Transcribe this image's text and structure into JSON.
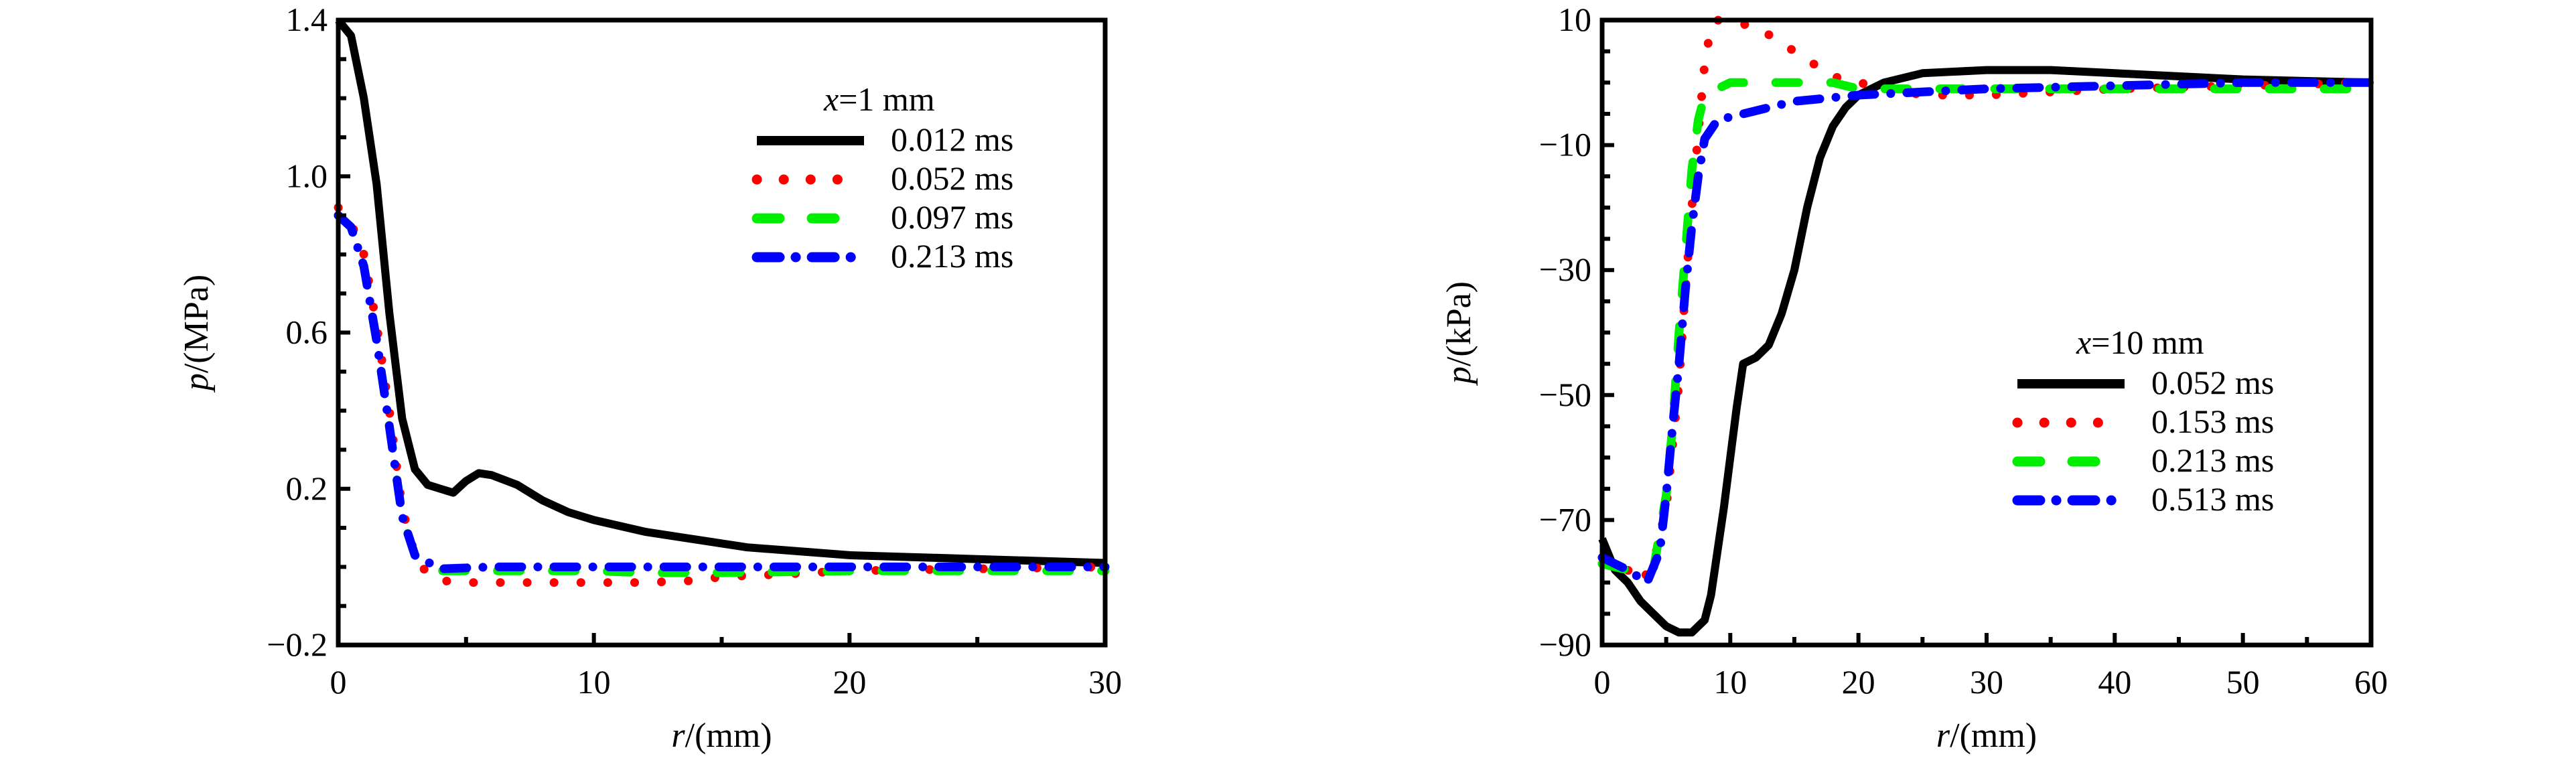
{
  "chart_data": [
    {
      "type": "line",
      "title": "",
      "xlabel_var": "r",
      "xlabel_unit": "/(mm)",
      "ylabel_var": "p",
      "ylabel_unit": "/(MPa)",
      "xlim": [
        0,
        30
      ],
      "ylim": [
        -0.2,
        1.4
      ],
      "xticks": [
        0,
        10,
        20,
        30
      ],
      "xtick_labels": [
        "0",
        "10",
        "20",
        "30"
      ],
      "yticks": [
        -0.2,
        0.2,
        0.6,
        1.0,
        1.4
      ],
      "ytick_labels": [
        "−0.2",
        "0.2",
        "0.6",
        "1.0",
        "1.4"
      ],
      "xminor": 5,
      "yminor": 0.1,
      "grid": false,
      "legend_position": "top-right",
      "legend_title_var": "x",
      "legend_title_rest": "=1 mm",
      "series": [
        {
          "name": "0.012 ms",
          "color": "#000000",
          "style": "solid",
          "x": [
            0,
            0.5,
            1,
            1.5,
            2,
            2.5,
            3,
            3.5,
            4,
            4.5,
            5,
            5.5,
            6,
            7,
            8,
            9,
            10,
            12,
            14,
            16,
            18,
            20,
            25,
            30
          ],
          "y": [
            1.4,
            1.36,
            1.2,
            0.98,
            0.65,
            0.38,
            0.25,
            0.21,
            0.2,
            0.19,
            0.22,
            0.24,
            0.235,
            0.21,
            0.17,
            0.14,
            0.12,
            0.09,
            0.07,
            0.05,
            0.04,
            0.03,
            0.02,
            0.01
          ]
        },
        {
          "name": "0.052 ms",
          "color": "#ff0000",
          "style": "dotted",
          "x": [
            0,
            0.5,
            1,
            1.5,
            2,
            2.5,
            3,
            3.5,
            4,
            5,
            8,
            10,
            12,
            14,
            15,
            17,
            20,
            25,
            30
          ],
          "y": [
            0.92,
            0.88,
            0.8,
            0.62,
            0.4,
            0.15,
            0.03,
            -0.02,
            -0.035,
            -0.04,
            -0.04,
            -0.04,
            -0.04,
            -0.035,
            -0.025,
            -0.02,
            -0.01,
            -0.005,
            0
          ]
        },
        {
          "name": "0.097 ms",
          "color": "#00ee00",
          "style": "dashed",
          "x": [
            0,
            0.5,
            1,
            1.5,
            2,
            2.5,
            3,
            4,
            6,
            10,
            12,
            15,
            20,
            25,
            30
          ],
          "y": [
            0.9,
            0.87,
            0.77,
            0.58,
            0.36,
            0.13,
            0.03,
            -0.01,
            -0.01,
            -0.01,
            -0.015,
            -0.015,
            -0.01,
            -0.01,
            -0.01
          ]
        },
        {
          "name": "0.213 ms",
          "color": "#0000ff",
          "style": "dashdot",
          "x": [
            0,
            0.5,
            1,
            1.5,
            2,
            2.5,
            3,
            4,
            6,
            10,
            15,
            20,
            25,
            30
          ],
          "y": [
            0.9,
            0.87,
            0.77,
            0.58,
            0.36,
            0.13,
            0.03,
            -0.005,
            0,
            0,
            0,
            0,
            0,
            0
          ]
        }
      ]
    },
    {
      "type": "line",
      "title": "",
      "xlabel_var": "r",
      "xlabel_unit": "/(mm)",
      "ylabel_var": "p",
      "ylabel_unit": "/(kPa)",
      "xlim": [
        0,
        60
      ],
      "ylim": [
        -90,
        10
      ],
      "xticks": [
        0,
        10,
        20,
        30,
        40,
        50,
        60
      ],
      "xtick_labels": [
        "0",
        "10",
        "20",
        "30",
        "40",
        "50",
        "60"
      ],
      "yticks": [
        -90,
        -70,
        -50,
        -30,
        -10,
        10
      ],
      "ytick_labels": [
        "−90",
        "−70",
        "−50",
        "−30",
        "−10",
        "10"
      ],
      "xminor": 5,
      "yminor": 5,
      "grid": false,
      "legend_position": "center-right",
      "legend_title_var": "x",
      "legend_title_rest": "=10 mm",
      "series": [
        {
          "name": "0.052 ms",
          "color": "#000000",
          "style": "solid",
          "x": [
            0,
            1,
            2,
            3,
            4,
            5,
            6,
            7,
            8,
            8.5,
            9,
            9.5,
            10,
            10.5,
            11,
            12,
            13,
            14,
            15,
            16,
            17,
            18,
            19,
            20,
            22,
            25,
            30,
            35,
            40,
            50,
            60
          ],
          "y": [
            -73,
            -78,
            -80,
            -83,
            -85,
            -87,
            -88,
            -88,
            -86,
            -82,
            -75,
            -68,
            -60,
            -52,
            -45,
            -44,
            -42,
            -37,
            -30,
            -20,
            -12,
            -7,
            -4,
            -2,
            0,
            1.5,
            2,
            2,
            1.5,
            0.5,
            0
          ]
        },
        {
          "name": "0.153 ms",
          "color": "#ff0000",
          "style": "dotted",
          "x": [
            0,
            2,
            3,
            4,
            5,
            5.5,
            6,
            6.5,
            7,
            7.5,
            8,
            8.5,
            9,
            12,
            15,
            18,
            20,
            25,
            30,
            40,
            50,
            60
          ],
          "y": [
            -77,
            -78,
            -80,
            -77,
            -68,
            -58,
            -48,
            -33,
            -20,
            -8,
            3,
            9,
            10,
            9,
            5,
            1,
            0,
            -2,
            -2,
            -1,
            -0.5,
            0
          ]
        },
        {
          "name": "0.213 ms",
          "color": "#00ee00",
          "style": "dashed",
          "x": [
            0,
            2,
            4,
            5,
            5.5,
            6,
            6.5,
            7,
            7.5,
            8,
            10,
            15,
            18,
            20,
            25,
            30,
            40,
            50,
            60
          ],
          "y": [
            -77,
            -78,
            -78,
            -66,
            -55,
            -40,
            -27,
            -14,
            -6,
            -2,
            0,
            0,
            0,
            -1,
            -1,
            -1,
            -1,
            -1,
            -1
          ]
        },
        {
          "name": "0.513 ms",
          "color": "#0000ff",
          "style": "dashdot",
          "x": [
            0,
            2,
            3.5,
            4.5,
            5,
            5.5,
            6,
            6.5,
            7,
            7.5,
            8,
            9,
            11,
            13,
            15,
            20,
            25,
            30,
            40,
            50,
            60
          ],
          "y": [
            -76,
            -78,
            -80,
            -75,
            -66,
            -55,
            -45,
            -33,
            -23,
            -15,
            -9,
            -6,
            -5,
            -4,
            -3,
            -2,
            -1.5,
            -1,
            -0.5,
            0,
            0
          ]
        }
      ]
    }
  ]
}
